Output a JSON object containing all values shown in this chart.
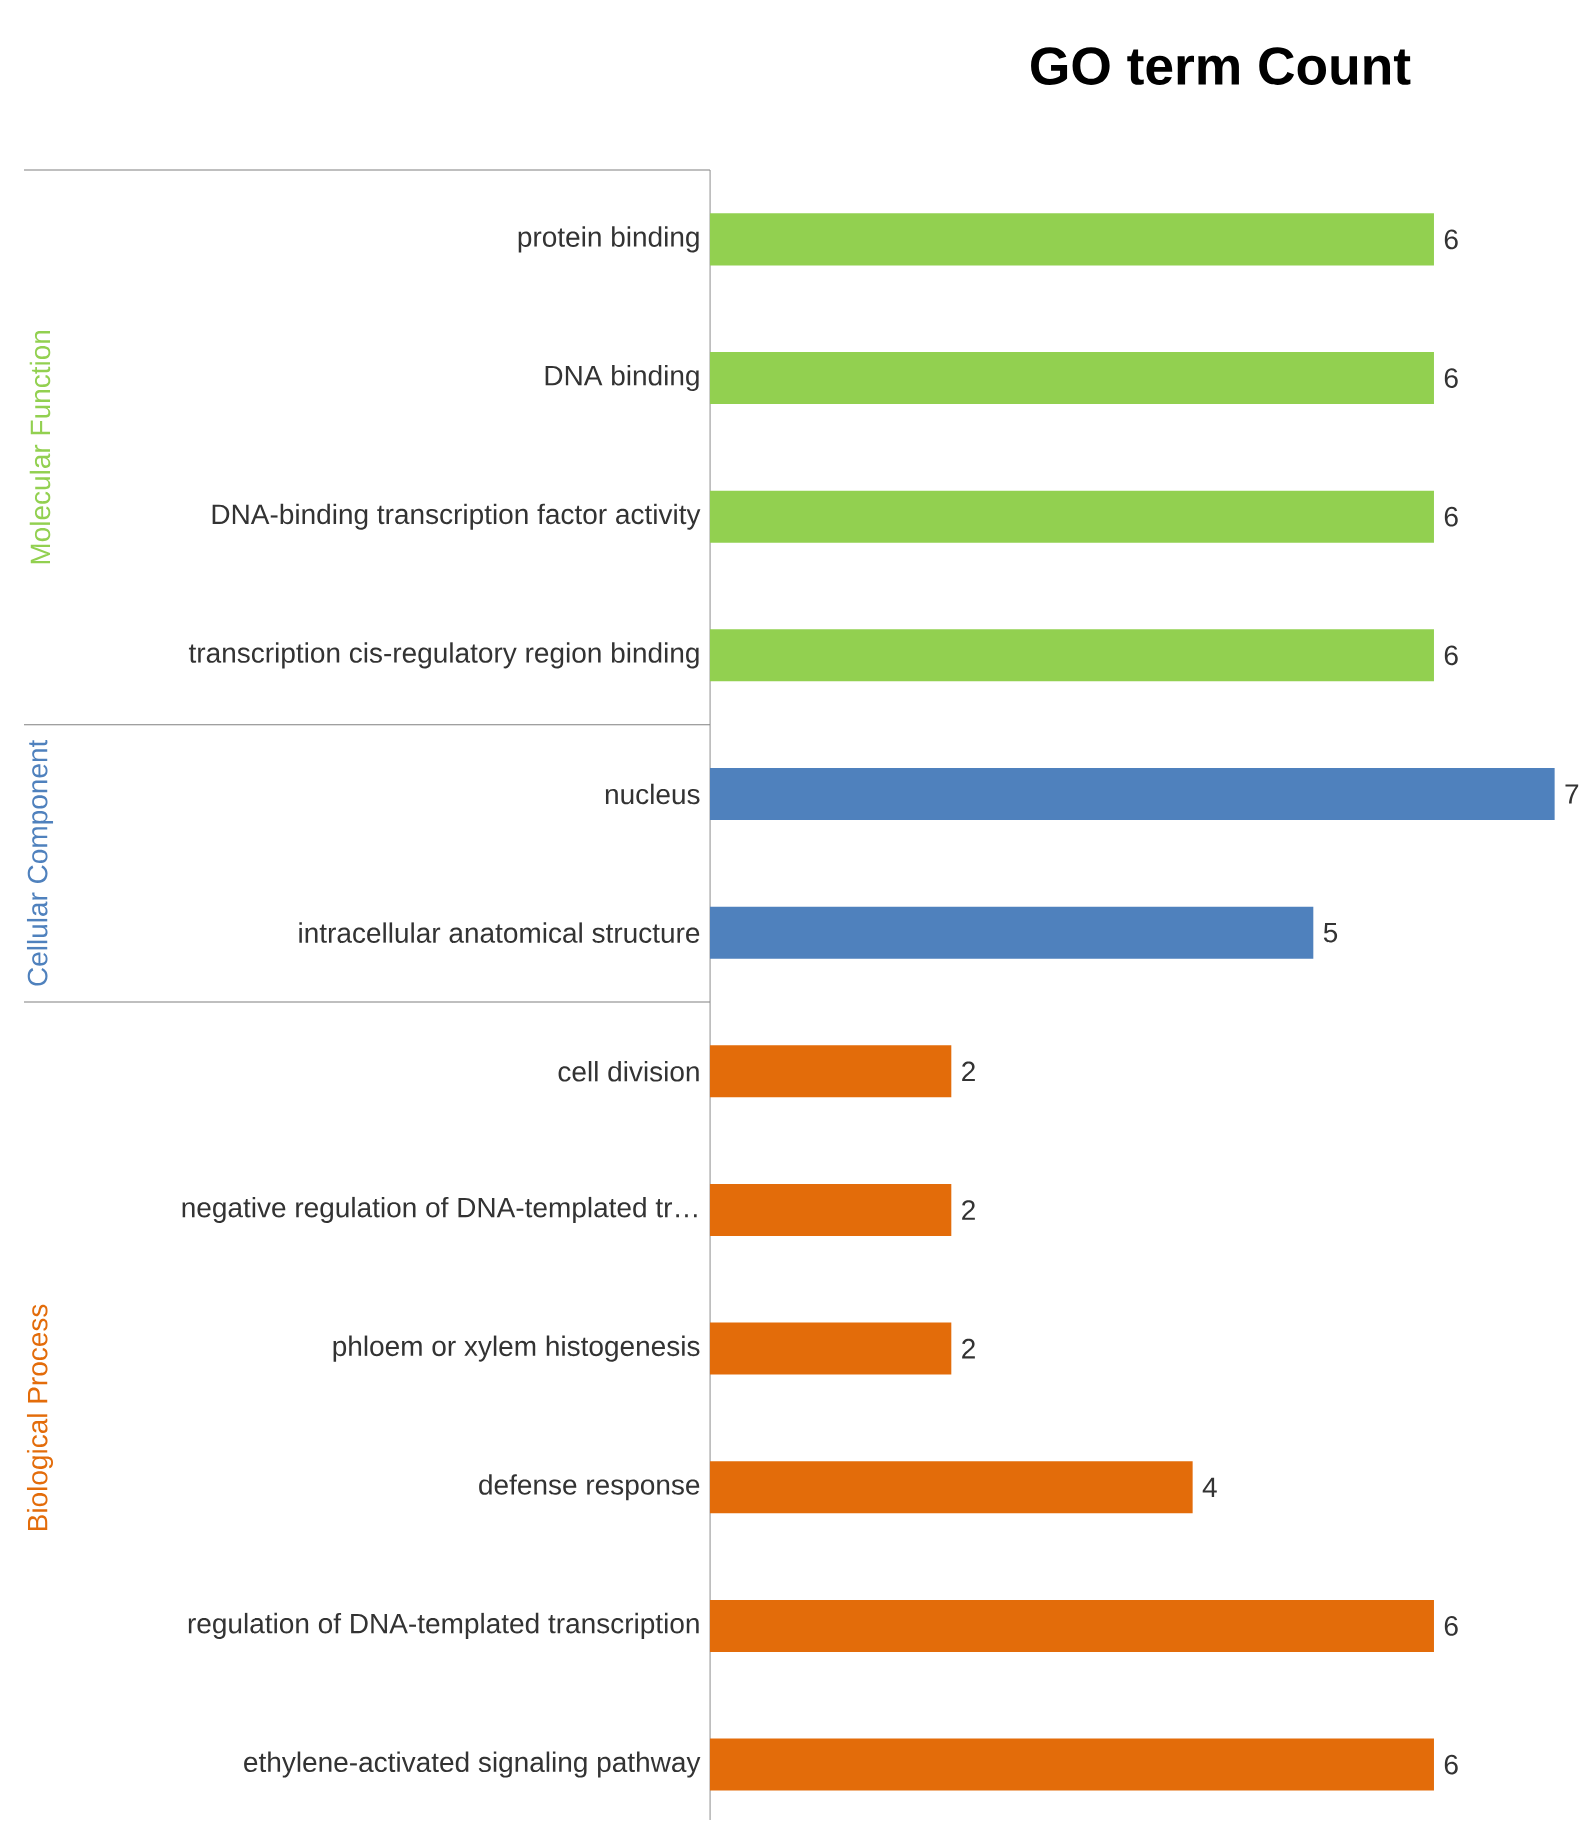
{
  "chart_data": {
    "type": "bar",
    "orientation": "horizontal",
    "title": "GO term Count",
    "data_labels": true,
    "categories": [
      "protein binding",
      "DNA binding",
      "DNA-binding transcription factor activity",
      "transcription cis-regulatory region binding",
      "nucleus",
      "intracellular anatomical structure",
      "cell division",
      "negative regulation of DNA-templated tr…",
      "phloem or xylem histogenesis",
      "defense response",
      "regulation of DNA-templated transcription",
      "ethylene-activated signaling pathway"
    ],
    "series": [
      {
        "name": "Molecular Function",
        "color": "#92d050",
        "values": [
          6,
          6,
          6,
          6,
          null,
          null,
          null,
          null,
          null,
          null,
          null,
          null
        ]
      },
      {
        "name": "Cellular Component",
        "color": "#4f81bd",
        "values": [
          null,
          null,
          null,
          null,
          7,
          5,
          null,
          null,
          null,
          null,
          null,
          null
        ]
      },
      {
        "name": "Biological Process",
        "color": "#e36c0a",
        "values": [
          null,
          null,
          null,
          null,
          null,
          null,
          2,
          2,
          2,
          4,
          6,
          6
        ]
      }
    ]
  }
}
